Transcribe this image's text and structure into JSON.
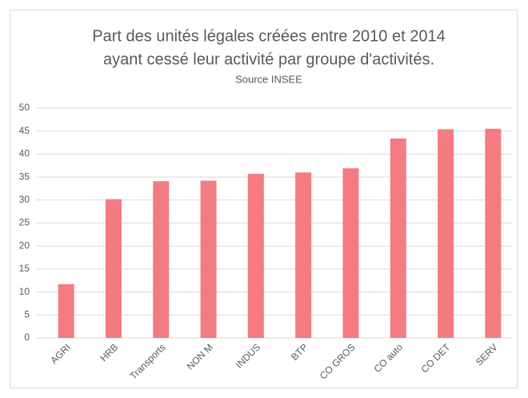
{
  "chart_data": {
    "type": "bar",
    "title": [
      "Part des unités légales créées entre 2010 et 2014",
      "ayant cessé leur activité par groupe d'activités."
    ],
    "subtitle": "Source INSEE",
    "categories": [
      "AGRI",
      "HRB",
      "Transports",
      "NON M",
      "INDUS",
      "BTP",
      "CO GROS",
      "CO auto",
      "CO DET",
      "SERV"
    ],
    "values": [
      11.7,
      30.2,
      34.1,
      34.2,
      35.7,
      36.0,
      36.9,
      43.4,
      45.4,
      45.5
    ],
    "color": "#f47b82",
    "ylim": [
      0,
      50
    ],
    "yticks": [
      0,
      5,
      10,
      15,
      20,
      25,
      30,
      35,
      40,
      45,
      50
    ],
    "grid": true
  }
}
